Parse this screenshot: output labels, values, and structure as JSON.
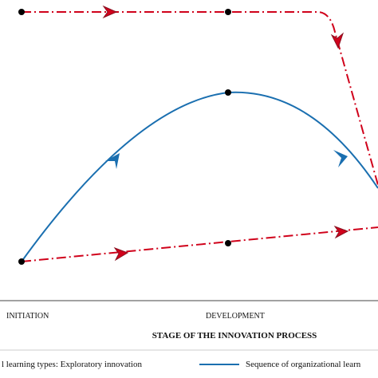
{
  "stages": [
    "INITIATION",
    "DEVELOPMENT"
  ],
  "axis_title": "STAGE OF THE INNOVATION PROCESS",
  "legend": [
    "l learning types: Exploratory innovation",
    "Sequence of organizational learn"
  ]
}
